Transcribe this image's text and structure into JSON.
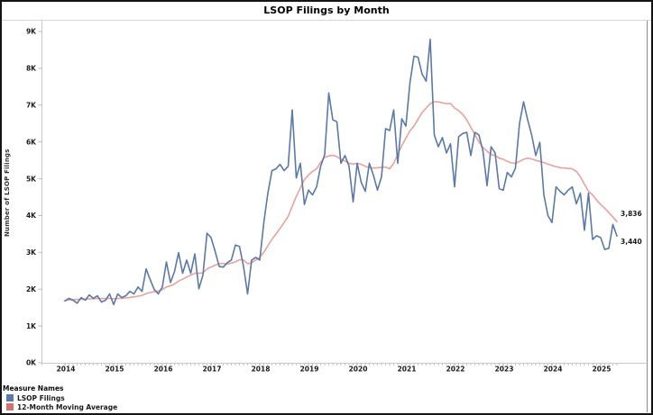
{
  "title": "LSOP Filings by Month",
  "legend": {
    "title": "Measure Names",
    "items": [
      {
        "label": "LSOP Filings",
        "color": "#5b79a8"
      },
      {
        "label": "12-Month Moving Average",
        "color": "#d4716e"
      }
    ]
  },
  "chart_data": {
    "type": "line",
    "title": "LSOP Filings by Month",
    "xlabel": "",
    "ylabel": "Number of LSOP Filings",
    "x_interval": "month",
    "x_start": "2014-01",
    "x_end": "2025-05",
    "x_tick_labels": [
      "2014",
      "2015",
      "2016",
      "2017",
      "2018",
      "2019",
      "2020",
      "2021",
      "2022",
      "2023",
      "2024",
      "2025"
    ],
    "y_tick_labels": [
      "0K",
      "1K",
      "2K",
      "3K",
      "4K",
      "5K",
      "6K",
      "7K",
      "8K",
      "9K"
    ],
    "ylim": [
      0,
      9000
    ],
    "grid": "none",
    "legend_position": "bottom-left",
    "series": [
      {
        "name": "LSOP Filings",
        "color": "#5b79a8",
        "values": [
          1680,
          1750,
          1700,
          1620,
          1770,
          1700,
          1845,
          1750,
          1820,
          1650,
          1700,
          1870,
          1580,
          1870,
          1770,
          1820,
          1940,
          1870,
          2060,
          1940,
          2550,
          2260,
          1990,
          1870,
          2060,
          2740,
          2180,
          2480,
          2990,
          2430,
          2790,
          2430,
          2960,
          2010,
          2380,
          3520,
          3400,
          3030,
          2620,
          2600,
          2720,
          2790,
          3200,
          3160,
          2620,
          1870,
          2790,
          2865,
          2790,
          3810,
          4610,
          5220,
          5270,
          5390,
          5220,
          5340,
          6870,
          5020,
          5420,
          4300,
          4690,
          4560,
          4780,
          5340,
          5660,
          7330,
          6600,
          6550,
          5420,
          5630,
          5340,
          4370,
          5420,
          4900,
          4660,
          5420,
          5100,
          4690,
          5050,
          6360,
          6310,
          6870,
          5420,
          6630,
          6430,
          7600,
          8330,
          8300,
          7840,
          7650,
          8790,
          6190,
          5870,
          6120,
          5700,
          5950,
          4780,
          6140,
          6230,
          6260,
          5630,
          6260,
          6190,
          5750,
          4810,
          5870,
          5700,
          4730,
          4690,
          5170,
          5050,
          5290,
          6500,
          7090,
          6600,
          6190,
          5630,
          5990,
          4560,
          4000,
          3810,
          4780,
          4660,
          4560,
          4690,
          4780,
          4320,
          4610,
          3600,
          4610,
          3350,
          3450,
          3400,
          3080,
          3110,
          3760,
          3440
        ]
      },
      {
        "name": "12-Month Moving Average",
        "color": "#eba29c",
        "values": [
          1700,
          1710,
          1715,
          1720,
          1725,
          1730,
          1735,
          1740,
          1745,
          1745,
          1745,
          1750,
          1740,
          1745,
          1750,
          1760,
          1775,
          1790,
          1810,
          1830,
          1880,
          1910,
          1930,
          1950,
          1990,
          2060,
          2090,
          2140,
          2220,
          2270,
          2330,
          2380,
          2430,
          2430,
          2440,
          2550,
          2600,
          2650,
          2690,
          2700,
          2680,
          2710,
          2740,
          2800,
          2790,
          2690,
          2720,
          2790,
          2870,
          3000,
          3180,
          3350,
          3500,
          3650,
          3810,
          3980,
          4250,
          4520,
          4750,
          4980,
          5100,
          5200,
          5270,
          5450,
          5580,
          5620,
          5640,
          5600,
          5530,
          5480,
          5420,
          5400,
          5420,
          5390,
          5340,
          5300,
          5290,
          5300,
          5310,
          5320,
          5270,
          5420,
          5660,
          5900,
          6100,
          6300,
          6430,
          6620,
          6800,
          6920,
          7040,
          7090,
          7090,
          7060,
          7040,
          7040,
          6920,
          6850,
          6750,
          6600,
          6400,
          6200,
          6000,
          5850,
          5750,
          5660,
          5630,
          5560,
          5530,
          5470,
          5430,
          5420,
          5470,
          5530,
          5560,
          5540,
          5500,
          5470,
          5440,
          5400,
          5360,
          5330,
          5300,
          5290,
          5280,
          5270,
          5200,
          5050,
          4850,
          4660,
          4560,
          4420,
          4300,
          4200,
          4080,
          3960,
          3836
        ]
      }
    ],
    "end_labels": {
      "moving_average": "3,836",
      "filings": "3,440"
    }
  }
}
